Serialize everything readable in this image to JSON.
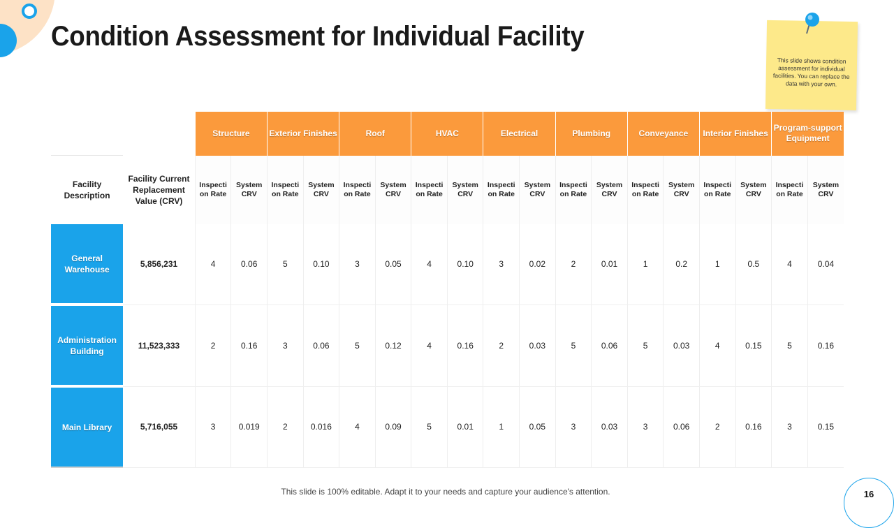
{
  "title": "Condition Assessment for Individual Facility",
  "note": "This slide shows condition assessment for individual facilities. You can replace the data with  your own.",
  "table": {
    "categories": [
      "Structure",
      "Exterior Finishes",
      "Roof",
      "HVAC",
      "Electrical",
      "Plumbing",
      "Conveyance",
      "Interior Finishes",
      "Program-support Equipment"
    ],
    "facility_header": "Facility Description",
    "crv_header": "Facility Current Replacement Value (CRV)",
    "sub_headers": [
      "Inspecti on Rate",
      "System CRV"
    ],
    "rows": [
      {
        "facility": "General Warehouse",
        "crv": "5,856,231",
        "values": [
          "4",
          "0.06",
          "5",
          "0.10",
          "3",
          "0.05",
          "4",
          "0.10",
          "3",
          "0.02",
          "2",
          "0.01",
          "1",
          "0.2",
          "1",
          "0.5",
          "4",
          "0.04"
        ]
      },
      {
        "facility": "Administration Building",
        "crv": "11,523,333",
        "values": [
          "2",
          "0.16",
          "3",
          "0.06",
          "5",
          "0.12",
          "4",
          "0.16",
          "2",
          "0.03",
          "5",
          "0.06",
          "5",
          "0.03",
          "4",
          "0.15",
          "5",
          "0.16"
        ]
      },
      {
        "facility": "Main Library",
        "crv": "5,716,055",
        "values": [
          "3",
          "0.019",
          "2",
          "0.016",
          "4",
          "0.09",
          "5",
          "0.01",
          "1",
          "0.05",
          "3",
          "0.03",
          "3",
          "0.06",
          "2",
          "0.16",
          "3",
          "0.15"
        ]
      }
    ]
  },
  "footer": "This slide is 100% editable. Adapt it to your needs and capture your audience's attention.",
  "page_number": "16",
  "colors": {
    "accent_orange": "#fb9a3c",
    "accent_blue": "#1aa3ea",
    "note_yellow": "#fde98a"
  }
}
